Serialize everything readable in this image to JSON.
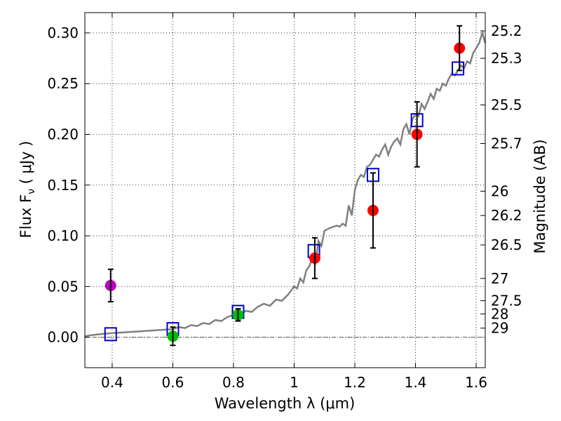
{
  "chart_data": {
    "type": "scatter",
    "xlabel": "Wavelength  λ (μm)",
    "ylabel": "Flux  F",
    "ylabel_sub": "ν",
    "ylabel_unit": "  ( μJy )",
    "y2label": "Magnitude (AB)",
    "xlim": [
      0.31,
      1.63
    ],
    "ylim": [
      -0.03,
      0.32
    ],
    "x_ticks": [
      0.4,
      0.6,
      0.8,
      1.0,
      1.2,
      1.4,
      1.6
    ],
    "x_tick_labels": [
      "0.4",
      "0.6",
      "0.8",
      "1",
      "1.2",
      "1.4",
      "1.6"
    ],
    "y_ticks": [
      0.0,
      0.05,
      0.1,
      0.15,
      0.2,
      0.25,
      0.3
    ],
    "y_tick_labels": [
      "0.00",
      "0.05",
      "0.10",
      "0.15",
      "0.20",
      "0.25",
      "0.30"
    ],
    "mag_ticks": [
      {
        "flux": 0.302,
        "label": "25.2"
      },
      {
        "flux": 0.275,
        "label": "25.3"
      },
      {
        "flux": 0.229,
        "label": "25.5"
      },
      {
        "flux": 0.191,
        "label": "25.7"
      },
      {
        "flux": 0.144,
        "label": "26"
      },
      {
        "flux": 0.12,
        "label": "26.2"
      },
      {
        "flux": 0.091,
        "label": "26.5"
      },
      {
        "flux": 0.058,
        "label": "27"
      },
      {
        "flux": 0.036,
        "label": "27.5"
      },
      {
        "flux": 0.023,
        "label": "28"
      },
      {
        "flux": 0.009,
        "label": "29"
      }
    ],
    "grid": true,
    "zero_line": true,
    "colors": {
      "model": "#808080",
      "photometry_box": "#0000cc",
      "error_bar": "#000000",
      "zero_line": "#555555"
    },
    "model_spectrum": {
      "x": [
        0.31,
        0.33,
        0.36,
        0.4,
        0.45,
        0.5,
        0.55,
        0.6,
        0.62,
        0.64,
        0.66,
        0.68,
        0.7,
        0.72,
        0.74,
        0.76,
        0.78,
        0.8,
        0.82,
        0.84,
        0.86,
        0.88,
        0.9,
        0.92,
        0.94,
        0.96,
        0.98,
        1.0,
        1.01,
        1.02,
        1.03,
        1.04,
        1.05,
        1.06,
        1.07,
        1.08,
        1.09,
        1.1,
        1.12,
        1.14,
        1.15,
        1.16,
        1.17,
        1.18,
        1.19,
        1.2,
        1.21,
        1.22,
        1.23,
        1.24,
        1.25,
        1.26,
        1.27,
        1.28,
        1.29,
        1.3,
        1.31,
        1.32,
        1.33,
        1.34,
        1.35,
        1.36,
        1.37,
        1.38,
        1.39,
        1.4,
        1.41,
        1.42,
        1.43,
        1.44,
        1.45,
        1.46,
        1.47,
        1.48,
        1.49,
        1.5,
        1.51,
        1.52,
        1.53,
        1.54,
        1.55,
        1.56,
        1.57,
        1.58,
        1.59,
        1.6,
        1.61,
        1.62,
        1.63
      ],
      "y": [
        0.001,
        0.002,
        0.003,
        0.004,
        0.005,
        0.006,
        0.007,
        0.008,
        0.01,
        0.009,
        0.012,
        0.011,
        0.014,
        0.013,
        0.017,
        0.016,
        0.02,
        0.022,
        0.021,
        0.026,
        0.025,
        0.03,
        0.033,
        0.031,
        0.037,
        0.036,
        0.042,
        0.05,
        0.048,
        0.058,
        0.054,
        0.066,
        0.07,
        0.078,
        0.073,
        0.095,
        0.09,
        0.105,
        0.108,
        0.11,
        0.109,
        0.112,
        0.11,
        0.13,
        0.12,
        0.145,
        0.155,
        0.16,
        0.158,
        0.168,
        0.17,
        0.175,
        0.18,
        0.178,
        0.185,
        0.19,
        0.18,
        0.188,
        0.193,
        0.196,
        0.19,
        0.205,
        0.21,
        0.2,
        0.215,
        0.22,
        0.218,
        0.23,
        0.225,
        0.232,
        0.24,
        0.235,
        0.245,
        0.243,
        0.25,
        0.248,
        0.255,
        0.26,
        0.258,
        0.263,
        0.268,
        0.265,
        0.272,
        0.27,
        0.28,
        0.285,
        0.29,
        0.3,
        0.29
      ]
    },
    "photometry_boxes": {
      "x": [
        0.395,
        0.6,
        0.815,
        1.065,
        1.26,
        1.405,
        1.54
      ],
      "y": [
        0.003,
        0.008,
        0.025,
        0.085,
        0.16,
        0.214,
        0.265
      ]
    },
    "measurements": [
      {
        "x": 0.395,
        "y": 0.051,
        "err": 0.016,
        "color": "#bf00bf"
      },
      {
        "x": 0.6,
        "y": 0.001,
        "err": 0.009,
        "color": "#00bf00"
      },
      {
        "x": 0.815,
        "y": 0.022,
        "err": 0.006,
        "color": "#00bf00"
      },
      {
        "x": 1.068,
        "y": 0.078,
        "err": 0.02,
        "color": "#ff0000"
      },
      {
        "x": 1.26,
        "y": 0.125,
        "err": 0.037,
        "color": "#ff0000"
      },
      {
        "x": 1.405,
        "y": 0.2,
        "err": 0.032,
        "color": "#ff0000"
      },
      {
        "x": 1.545,
        "y": 0.285,
        "err": 0.022,
        "color": "#ff0000"
      }
    ]
  }
}
